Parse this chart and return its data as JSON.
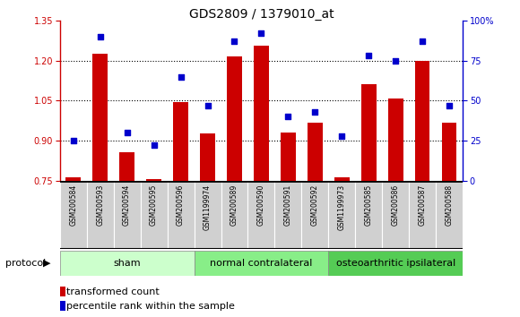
{
  "title": "GDS2809 / 1379010_at",
  "samples": [
    "GSM200584",
    "GSM200593",
    "GSM200594",
    "GSM200595",
    "GSM200596",
    "GSM1199974",
    "GSM200589",
    "GSM200590",
    "GSM200591",
    "GSM200592",
    "GSM1199973",
    "GSM200585",
    "GSM200586",
    "GSM200587",
    "GSM200588"
  ],
  "bar_values": [
    0.762,
    1.225,
    0.855,
    0.757,
    1.043,
    0.928,
    1.215,
    1.255,
    0.932,
    0.968,
    0.762,
    1.113,
    1.057,
    1.2,
    0.968
  ],
  "scatter_values": [
    25,
    90,
    30,
    22,
    65,
    47,
    87,
    92,
    40,
    43,
    28,
    78,
    75,
    87,
    47
  ],
  "ylim_left": [
    0.75,
    1.35
  ],
  "ylim_right": [
    0,
    100
  ],
  "yticks_left": [
    0.75,
    0.9,
    1.05,
    1.2,
    1.35
  ],
  "yticks_right": [
    0,
    25,
    50,
    75,
    100
  ],
  "ytick_labels_right": [
    "0",
    "25",
    "50",
    "75",
    "100%"
  ],
  "bar_color": "#cc0000",
  "scatter_color": "#0000cc",
  "bar_bottom": 0.75,
  "groups": [
    {
      "label": "sham",
      "start": 0,
      "end": 5
    },
    {
      "label": "normal contralateral",
      "start": 5,
      "end": 10
    },
    {
      "label": "osteoarthritic ipsilateral",
      "start": 10,
      "end": 15
    }
  ],
  "group_colors": [
    "#ccffcc",
    "#88ee88",
    "#55cc55"
  ],
  "legend_bar_label": "transformed count",
  "legend_scatter_label": "percentile rank within the sample",
  "protocol_label": "protocol",
  "bar_color_red": "#cc0000",
  "scatter_color_blue": "#0000cc",
  "title_fontsize": 10,
  "tick_fontsize": 7,
  "label_fontsize": 5.5,
  "legend_fontsize": 8,
  "group_fontsize": 8
}
